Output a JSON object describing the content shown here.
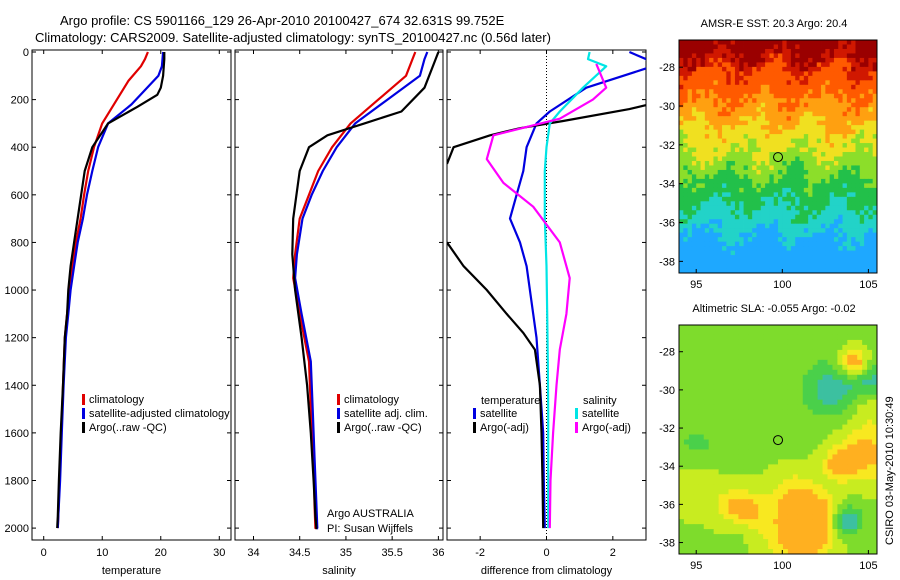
{
  "title_line1": "Argo profile: CS 5901166_129 26-Apr-2010 20100427_674 32.631S 99.752E",
  "title_line2": "Climatology: CARS2009. Satellite-adjusted climatology: synTS_20100427.nc (0.56d later)",
  "side_label": "CSIRO 03-May-2010 10:30:49",
  "colors": {
    "clim": "#e00000",
    "sat": "#0000e0",
    "argo": "#000000",
    "sal_sat": "#00e5e5",
    "sal_argo": "#ff00ff"
  },
  "chart_data": [
    {
      "type": "line",
      "name": "temperature-panel",
      "xlabel": "temperature",
      "ylabel": "",
      "xlim": [
        -2,
        32
      ],
      "ylim": [
        2050,
        0
      ],
      "xticks": [
        "0",
        "10",
        "20",
        "30"
      ],
      "yticks": [
        "0",
        "200",
        "400",
        "600",
        "800",
        "1000",
        "1200",
        "1400",
        "1600",
        "1800",
        "2000"
      ],
      "legend": [
        "climatology",
        "satellite-adjusted climatology",
        "Argo(..raw -QC)"
      ],
      "series": [
        {
          "key": "clim",
          "name": "climatology",
          "x": [
            17.8,
            17.3,
            16.6,
            14.5,
            12.0,
            10.0,
            8.6,
            7.6,
            6.9,
            6.3,
            5.5,
            4.9,
            4.4,
            4.0,
            3.6,
            3.3,
            3.0,
            2.7,
            2.5,
            2.4
          ],
          "y": [
            0,
            30,
            60,
            120,
            220,
            300,
            400,
            500,
            600,
            700,
            800,
            900,
            1000,
            1100,
            1200,
            1400,
            1600,
            1800,
            1950,
            2000
          ]
        },
        {
          "key": "sat",
          "name": "satellite-adjusted climatology",
          "x": [
            20.4,
            20.3,
            20.2,
            19.6,
            15.0,
            11.0,
            9.3,
            8.3,
            7.4,
            6.7,
            5.8,
            5.2,
            4.6,
            4.2,
            3.8,
            3.4,
            3.1,
            2.8,
            2.5,
            2.4
          ],
          "y": [
            0,
            30,
            60,
            100,
            220,
            300,
            400,
            500,
            600,
            700,
            800,
            900,
            1000,
            1100,
            1200,
            1400,
            1600,
            1800,
            1950,
            2000
          ]
        },
        {
          "key": "argo",
          "name": "Argo(..raw -QC)",
          "x": [
            20.6,
            20.6,
            20.4,
            20.0,
            19.4,
            16.0,
            11.0,
            8.3,
            7.0,
            6.1,
            5.2,
            4.6,
            4.2,
            4.0,
            3.6,
            3.3,
            2.9,
            2.6,
            2.4,
            2.3
          ],
          "y": [
            0,
            30,
            100,
            150,
            180,
            230,
            300,
            400,
            500,
            650,
            800,
            900,
            1000,
            1100,
            1200,
            1400,
            1600,
            1800,
            1950,
            2000
          ]
        }
      ]
    },
    {
      "type": "line",
      "name": "salinity-panel",
      "xlabel": "salinity",
      "ylabel": "",
      "xlim": [
        33.8,
        36.05
      ],
      "ylim": [
        2050,
        0
      ],
      "xticks": [
        "34",
        "34.5",
        "35",
        "35.5",
        "36"
      ],
      "legend": [
        "climatology",
        "satellite adj. clim.",
        "Argo(..raw -QC)"
      ],
      "annotations": [
        "Argo AUSTRALIA",
        "PI: Susan Wijffels"
      ],
      "series": [
        {
          "key": "clim",
          "name": "climatology",
          "x": [
            35.75,
            35.72,
            35.65,
            35.35,
            35.05,
            34.85,
            34.7,
            34.6,
            34.5,
            34.45,
            34.43,
            34.5,
            34.6,
            34.62,
            34.65,
            34.66,
            34.67,
            34.68
          ],
          "y": [
            0,
            30,
            100,
            200,
            300,
            400,
            500,
            600,
            700,
            850,
            950,
            1100,
            1300,
            1500,
            1700,
            1900,
            2000,
            2000
          ]
        },
        {
          "key": "sat",
          "name": "satellite adj. clim.",
          "x": [
            35.88,
            35.85,
            35.8,
            35.45,
            35.1,
            34.9,
            34.75,
            34.63,
            34.53,
            34.47,
            34.45,
            34.52,
            34.62,
            34.64,
            34.66,
            34.68,
            34.69,
            34.7
          ],
          "y": [
            0,
            30,
            100,
            200,
            300,
            400,
            500,
            600,
            700,
            850,
            950,
            1100,
            1300,
            1500,
            1700,
            1900,
            2000,
            2000
          ]
        },
        {
          "key": "argo",
          "name": "Argo(..raw -QC)",
          "x": [
            36.0,
            35.95,
            35.85,
            35.6,
            35.2,
            34.8,
            34.6,
            34.5,
            34.43,
            34.42,
            34.45,
            34.52,
            34.58,
            34.62,
            34.65,
            34.67,
            34.68,
            34.69
          ],
          "y": [
            0,
            50,
            150,
            250,
            300,
            350,
            400,
            500,
            700,
            850,
            1000,
            1200,
            1400,
            1600,
            1800,
            1950,
            2000,
            2000
          ]
        }
      ]
    },
    {
      "type": "line",
      "name": "difference-panel",
      "xlabel": "difference from climatology",
      "ylabel": "",
      "xlim": [
        -3,
        3
      ],
      "ylim": [
        2050,
        0
      ],
      "xticks": [
        "-2",
        "0",
        "2"
      ],
      "legend_headers": [
        "temperature",
        "salinity"
      ],
      "legend": [
        "satellite",
        "Argo(-adj)",
        "satellite",
        "Argo(-adj)"
      ],
      "series": [
        {
          "key": "sat",
          "name": "satellite",
          "x": [
            2.5,
            3.0,
            3.2,
            1.2,
            0.1,
            -0.3,
            -0.6,
            -0.7,
            -0.9,
            -1.1,
            -0.8,
            -0.6,
            -0.4,
            -0.3,
            -0.2,
            -0.1,
            -0.08,
            -0.05
          ],
          "y": [
            0,
            30,
            60,
            150,
            250,
            300,
            400,
            500,
            600,
            700,
            800,
            900,
            1100,
            1200,
            1400,
            1600,
            1800,
            2000
          ]
        },
        {
          "key": "argo",
          "name": "Argo(-adj)",
          "x": [
            3.1,
            2.5,
            0.5,
            -0.8,
            -1.7,
            -2.8,
            -3.0
          ],
          "y": [
            220,
            240,
            290,
            320,
            350,
            400,
            470
          ],
          "x2": [
            -3.0,
            -2.5,
            -1.8,
            -1.2,
            -0.7,
            -0.35,
            -0.2,
            -0.15,
            -0.12,
            -0.1
          ],
          "y2": [
            800,
            900,
            1000,
            1100,
            1180,
            1250,
            1400,
            1600,
            1800,
            2000
          ]
        },
        {
          "key": "sal_sat",
          "name": "satellite",
          "x": [
            1.3,
            1.25,
            1.8,
            1.1,
            0.4,
            0.1,
            0.0,
            -0.05,
            -0.05,
            0.0,
            0.02,
            0.04,
            0.05,
            0.05,
            0.05,
            0.05
          ],
          "y": [
            0,
            30,
            60,
            150,
            250,
            300,
            400,
            500,
            700,
            900,
            1100,
            1300,
            1500,
            1700,
            1900,
            2000
          ]
        },
        {
          "key": "sal_argo",
          "name": "Argo(-adj)",
          "x": [
            1.5,
            1.8,
            1.4,
            0.4,
            -1.6,
            -1.8,
            -1.3,
            -0.4,
            0.4,
            0.7,
            0.6,
            0.4,
            0.3,
            0.2,
            0.12,
            0.1
          ],
          "y": [
            50,
            150,
            200,
            280,
            350,
            450,
            550,
            650,
            800,
            950,
            1100,
            1250,
            1400,
            1600,
            1800,
            2000
          ]
        }
      ]
    },
    {
      "type": "heatmap",
      "name": "sst-map",
      "title": "AMSR-E SST: 20.3 Argo: 20.4",
      "xlim": [
        94,
        105.5
      ],
      "ylim": [
        -38.6,
        -26.6
      ],
      "xticks": [
        "95",
        "100",
        "105"
      ],
      "yticks": [
        "-28",
        "-30",
        "-32",
        "-34",
        "-36",
        "-38"
      ],
      "marker": {
        "lon": 99.752,
        "lat": -32.631
      }
    },
    {
      "type": "heatmap",
      "name": "sla-map",
      "title": "Altimetric SLA: -0.055 Argo: -0.02",
      "xlim": [
        94,
        105.5
      ],
      "ylim": [
        -38.6,
        -26.6
      ],
      "xticks": [
        "95",
        "100",
        "105"
      ],
      "yticks": [
        "-28",
        "-30",
        "-32",
        "-34",
        "-36",
        "-38"
      ],
      "marker": {
        "lon": 99.752,
        "lat": -32.631
      }
    }
  ]
}
